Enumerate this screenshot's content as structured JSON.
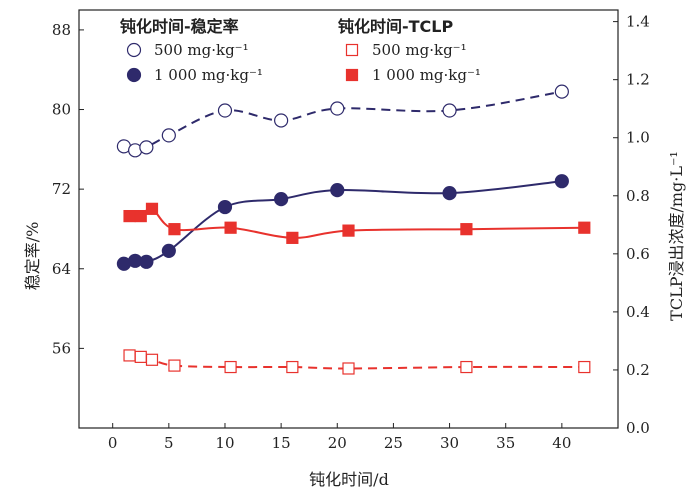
{
  "chart_data": {
    "type": "scatter",
    "xlabel": "钝化时间/d",
    "ylabel_left": "稳定率/%",
    "ylabel_right": "TCLP浸出浓度/mg·L⁻¹",
    "xlim": [
      -3,
      45
    ],
    "ylim_left": [
      48,
      90
    ],
    "ylim_right": [
      0,
      1.44
    ],
    "x_ticks": [
      0,
      5,
      10,
      15,
      20,
      25,
      30,
      35,
      40
    ],
    "y_ticks_left": [
      56,
      64,
      72,
      80,
      88
    ],
    "y_ticks_right": [
      0,
      0.2,
      0.4,
      0.6,
      0.8,
      1.0,
      1.2,
      1.4
    ],
    "legend_groups": [
      {
        "title": "钝化时间-稳定率",
        "entries": [
          "500 mg·kg⁻¹",
          "1 000 mg·kg⁻¹"
        ]
      },
      {
        "title": "钝化时间-TCLP",
        "entries": [
          "500 mg·kg⁻¹",
          "1 000 mg·kg⁻¹"
        ]
      }
    ],
    "legend_placement": "top",
    "series": [
      {
        "name": "500 mg·kg⁻¹",
        "group": "钝化时间-稳定率",
        "axis": "left",
        "marker": "open-circle",
        "color": "#2e2a6b",
        "line": "dashed",
        "x": [
          1,
          2,
          3,
          5,
          10,
          15,
          20,
          30,
          40
        ],
        "y": [
          76.3,
          75.9,
          76.2,
          77.4,
          79.9,
          78.9,
          80.1,
          79.9,
          81.8
        ]
      },
      {
        "name": "1 000 mg·kg⁻¹",
        "group": "钝化时间-稳定率",
        "axis": "left",
        "marker": "filled-circle",
        "color": "#2e2a6b",
        "line": "solid",
        "x": [
          1,
          2,
          3,
          5,
          10,
          15,
          20,
          30,
          40
        ],
        "y": [
          64.5,
          64.8,
          64.7,
          65.8,
          70.2,
          71.0,
          71.9,
          71.6,
          72.8
        ]
      },
      {
        "name": "500 mg·kg⁻¹",
        "group": "钝化时间-TCLP",
        "axis": "right",
        "marker": "open-square",
        "color": "#e8322d",
        "line": "dashed",
        "x": [
          1.5,
          2.5,
          3.5,
          5.5,
          10.5,
          16,
          21,
          31.5,
          42
        ],
        "y": [
          0.25,
          0.245,
          0.235,
          0.215,
          0.21,
          0.21,
          0.205,
          0.21,
          0.21
        ]
      },
      {
        "name": "1 000 mg·kg⁻¹",
        "group": "钝化时间-TCLP",
        "axis": "right",
        "marker": "filled-square",
        "color": "#e8322d",
        "line": "solid",
        "x": [
          1.5,
          2.5,
          3.5,
          5.5,
          10.5,
          16,
          21,
          31.5,
          42
        ],
        "y": [
          0.73,
          0.73,
          0.755,
          0.685,
          0.69,
          0.655,
          0.68,
          0.685,
          0.69
        ]
      }
    ]
  }
}
